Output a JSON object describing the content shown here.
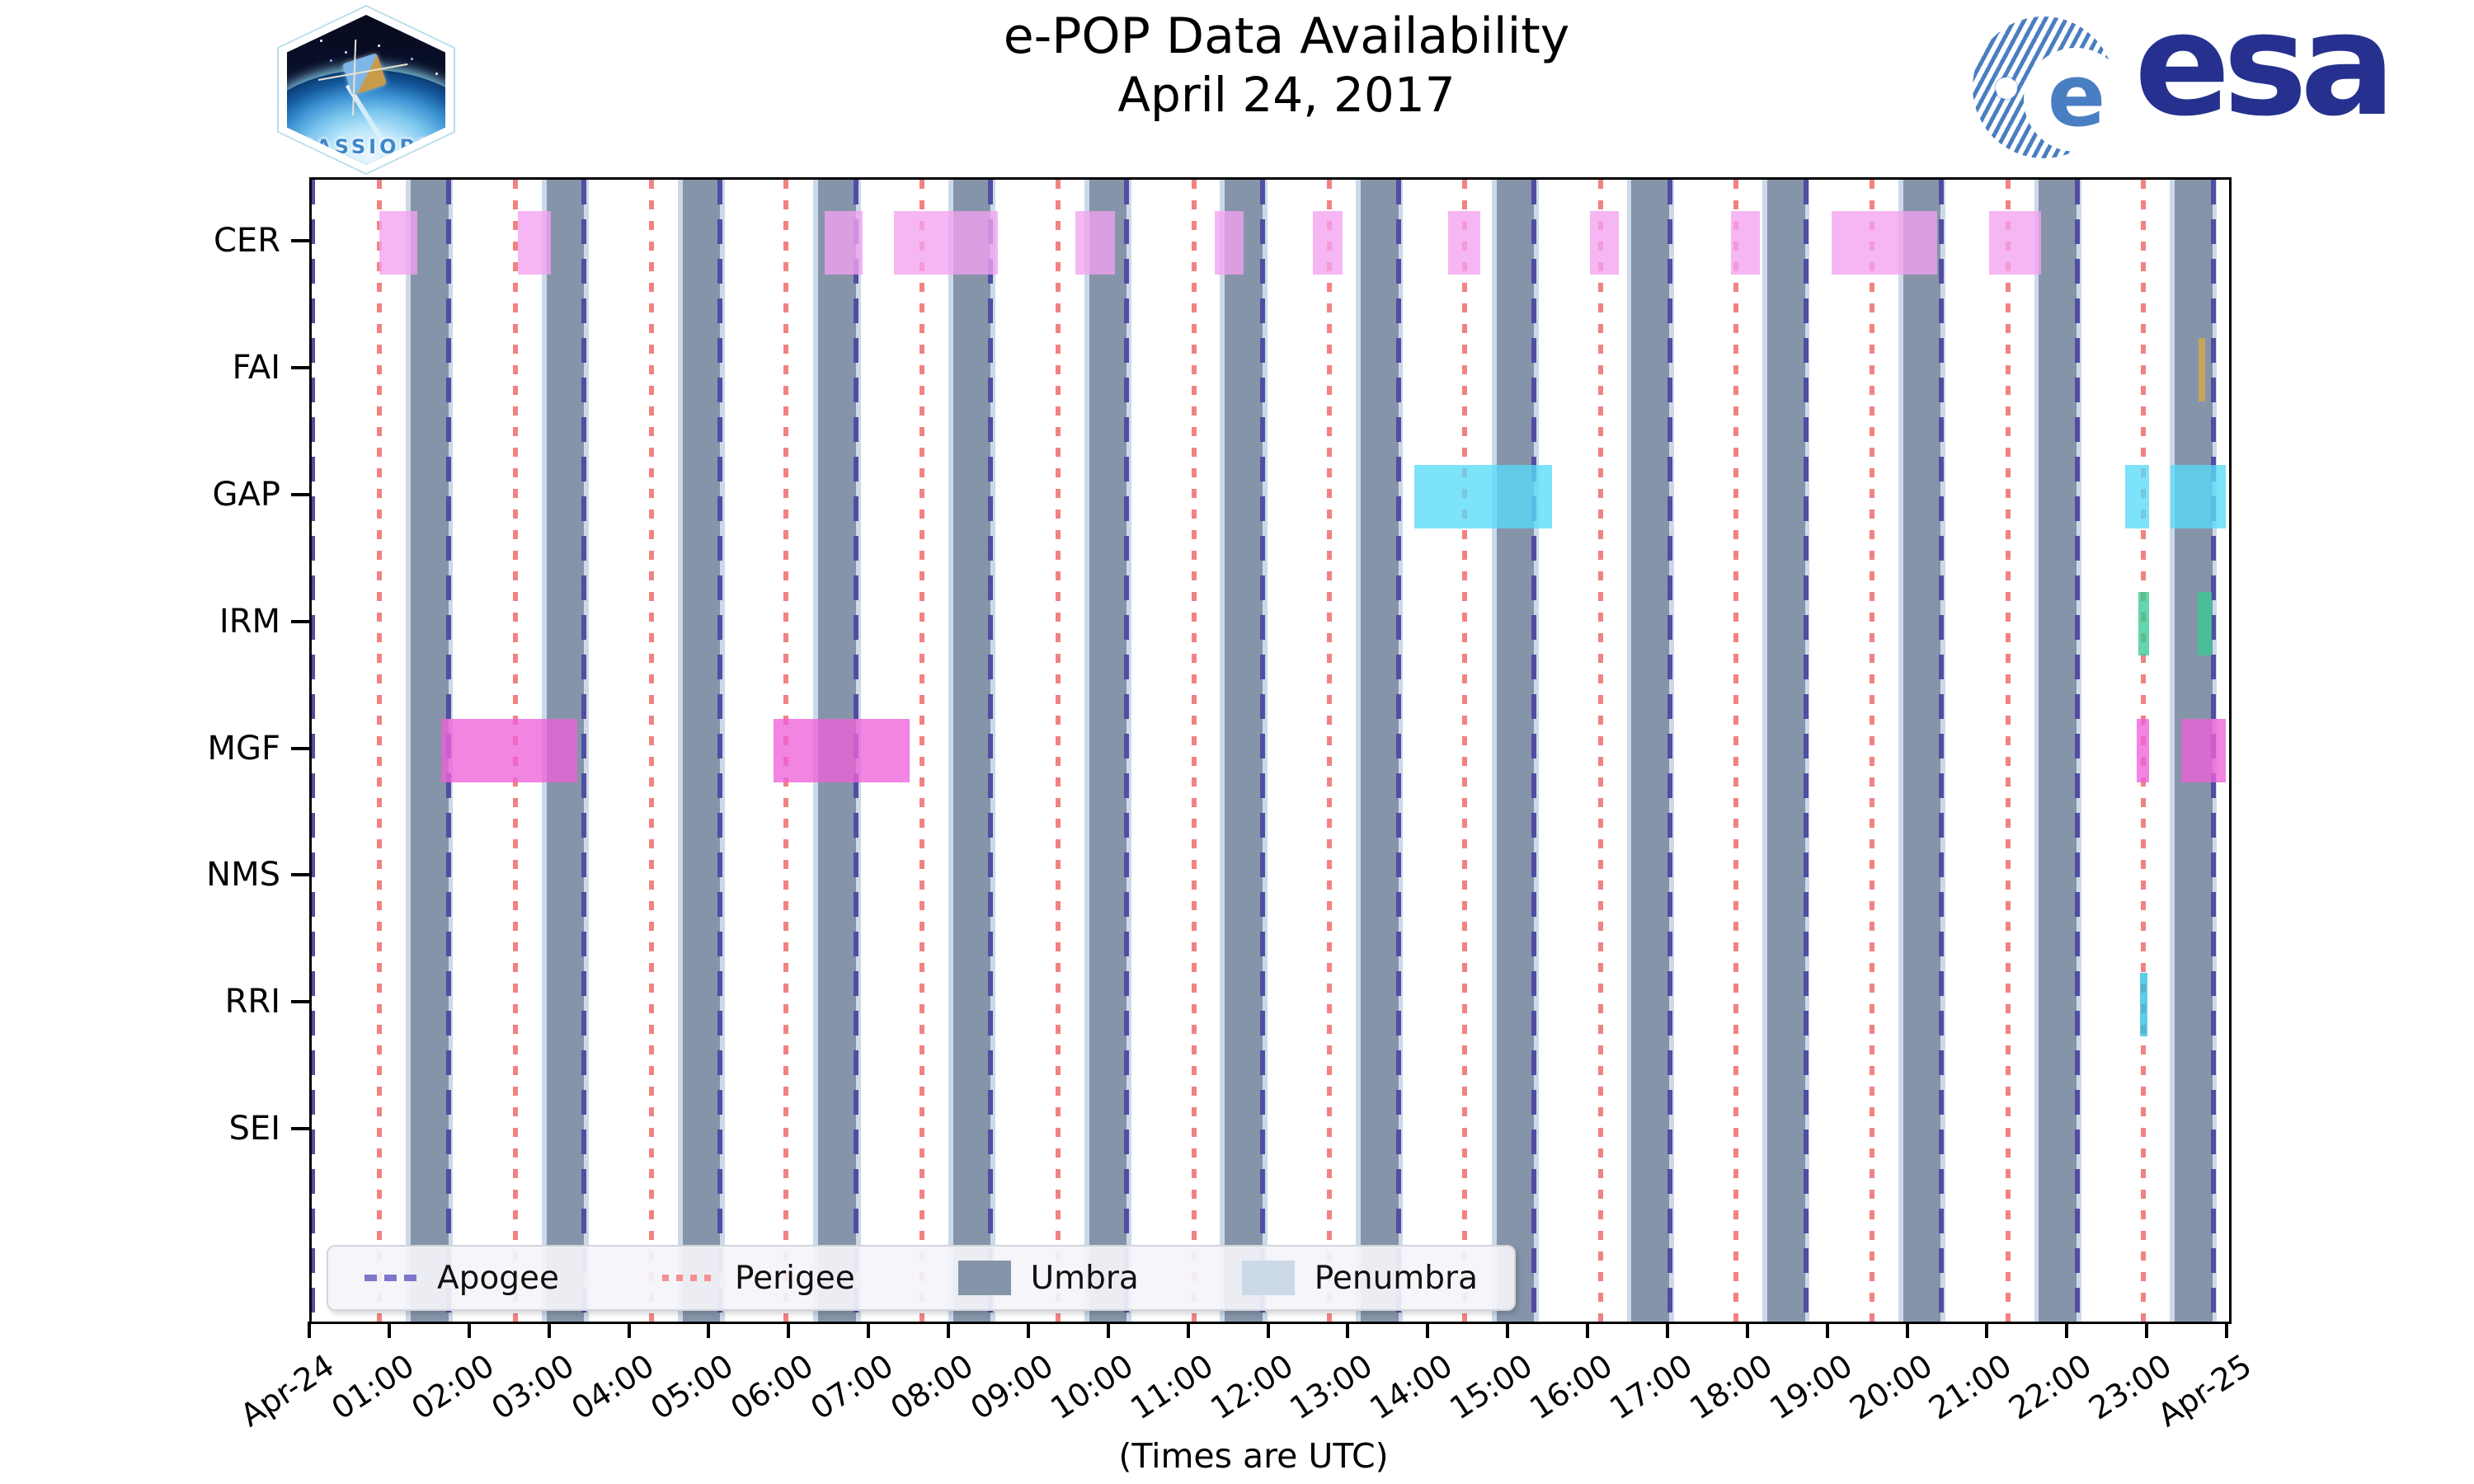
{
  "header": {
    "title_line1": "e-POP Data Availability",
    "title_line2": "April 24, 2017",
    "cassiope_label": "CASSIOPE",
    "esa_label": "esa",
    "esa_globe_letter": "e"
  },
  "footer_note": "(Times are UTC)",
  "legend": {
    "items": [
      {
        "key": "apogee",
        "label": "Apogee",
        "style": "dashed-line",
        "color": "#7d77c9"
      },
      {
        "key": "perigee",
        "label": "Perigee",
        "style": "dotted-line",
        "color": "#f4908f"
      },
      {
        "key": "umbra",
        "label": "Umbra",
        "style": "box",
        "color": "#8694a9"
      },
      {
        "key": "penumbra",
        "label": "Penumbra",
        "style": "box",
        "color": "#ccd9e9"
      }
    ]
  },
  "chart_data": {
    "type": "timeline-availability (broken_barh / gantt)",
    "title": "e-POP Data Availability April 24, 2017",
    "x_range_hours": [
      0,
      24
    ],
    "x_start_label": "Apr-24",
    "x_end_label": "Apr-25",
    "x_hour_labels": [
      "01:00",
      "02:00",
      "03:00",
      "04:00",
      "05:00",
      "06:00",
      "07:00",
      "08:00",
      "09:00",
      "10:00",
      "11:00",
      "12:00",
      "13:00",
      "14:00",
      "15:00",
      "16:00",
      "17:00",
      "18:00",
      "19:00",
      "20:00",
      "21:00",
      "22:00",
      "23:00"
    ],
    "rows": [
      {
        "name": "CER",
        "color": "#f4a2f0",
        "intervals": [
          [
            0.85,
            1.32
          ],
          [
            2.58,
            2.99
          ],
          [
            6.42,
            6.9
          ],
          [
            7.29,
            8.59
          ],
          [
            9.56,
            10.05
          ],
          [
            11.3,
            11.66
          ],
          [
            12.53,
            12.9
          ],
          [
            14.22,
            14.63
          ],
          [
            16.0,
            16.36
          ],
          [
            17.77,
            18.13
          ],
          [
            19.02,
            20.35
          ],
          [
            21.0,
            21.65
          ]
        ]
      },
      {
        "name": "FAI",
        "color": "#d9a944",
        "intervals": [
          [
            23.62,
            23.7
          ]
        ]
      },
      {
        "name": "GAP",
        "color": "#58dbf8",
        "intervals": [
          [
            13.8,
            15.52
          ],
          [
            22.7,
            23.0
          ],
          [
            23.27,
            23.96
          ]
        ]
      },
      {
        "name": "IRM",
        "color": "#38cb95",
        "intervals": [
          [
            22.86,
            23.0
          ],
          [
            23.61,
            23.78
          ]
        ]
      },
      {
        "name": "MGF",
        "color": "#ee62da",
        "intervals": [
          [
            1.62,
            3.32
          ],
          [
            5.78,
            7.48
          ],
          [
            22.84,
            23.0
          ],
          [
            23.4,
            23.96
          ]
        ]
      },
      {
        "name": "NMS",
        "color": null,
        "intervals": []
      },
      {
        "name": "RRI",
        "color": "#2fc0e0",
        "intervals": [
          [
            22.88,
            22.98
          ]
        ]
      },
      {
        "name": "SEI",
        "color": null,
        "intervals": []
      }
    ],
    "apogee_hours": [
      0.01,
      1.71,
      3.41,
      5.11,
      6.81,
      8.5,
      10.2,
      11.9,
      13.6,
      15.3,
      17.0,
      18.7,
      20.4,
      22.1,
      23.8
    ],
    "perigee_hours": [
      0.85,
      2.55,
      4.25,
      5.94,
      7.64,
      9.34,
      11.04,
      12.74,
      14.43,
      16.13,
      17.83,
      19.53,
      21.23,
      22.93
    ],
    "umbra_intervals": [
      [
        1.24,
        1.71
      ],
      [
        2.94,
        3.41
      ],
      [
        4.64,
        5.11
      ],
      [
        6.34,
        6.81
      ],
      [
        8.03,
        8.5
      ],
      [
        9.73,
        10.2
      ],
      [
        11.43,
        11.9
      ],
      [
        13.13,
        13.6
      ],
      [
        14.83,
        15.3
      ],
      [
        16.52,
        16.99
      ],
      [
        18.22,
        18.69
      ],
      [
        19.92,
        20.39
      ],
      [
        21.62,
        22.09
      ],
      [
        23.32,
        23.79
      ]
    ],
    "penumbra_pad_hours": 0.06,
    "bar_height_fraction": 0.5,
    "grid": false,
    "legend_position": "lower-left inside axes",
    "colors": {
      "umbra": "#8694a9",
      "penumbra": "#ccd9e9",
      "apogee_line": "#514da2",
      "perigee_line": "#f28282",
      "bar_opacity": "0.78"
    }
  }
}
